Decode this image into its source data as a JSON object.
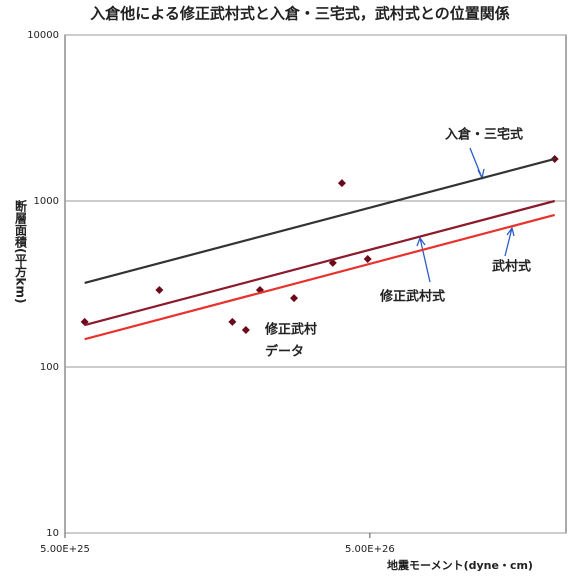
{
  "chart_data": {
    "type": "scatter",
    "title": "入倉他による修正武村式と入倉・三宅式，武村式との位置関係",
    "x_label": "地震モーメント(dyne・cm)",
    "y_label": "断層面積(平方km)",
    "log_x": true,
    "log_y": true,
    "grid": true,
    "xlim": [
      5e+25,
      2.2e+27
    ],
    "ylim": [
      10,
      10000
    ],
    "xticks": [
      {
        "value": 5e+25,
        "label": "5.00E+25"
      },
      {
        "value": 5e+26,
        "label": "5.00E+26"
      }
    ],
    "yticks": [
      10,
      100,
      1000,
      10000
    ],
    "annotations": [
      "修正武村",
      "データ"
    ],
    "series": [
      {
        "kind": "points",
        "color": "#6b0a1a",
        "x": [
          5.8e+25,
          1.02e+26,
          1.77e+26,
          1.96e+26,
          2.18e+26,
          2.82e+26,
          3.78e+26,
          4.05e+26,
          4.92e+26,
          2.02e+27
        ],
        "values": [
          187,
          291,
          187,
          167,
          291,
          260,
          424,
          1282,
          447,
          1791
        ]
      },
      {
        "kind": "line",
        "name": "入倉・三宅式",
        "color": "#333333",
        "x": [
          5.8e+25,
          2.02e+27
        ],
        "values": [
          321,
          1791
        ]
      },
      {
        "kind": "line",
        "name": "修正武村式",
        "color": "#8b1a2b",
        "x": [
          5.8e+25,
          2.02e+27
        ],
        "values": [
          179,
          1000
        ]
      },
      {
        "kind": "line",
        "name": "武村式",
        "color": "#e8322e",
        "x": [
          5.8e+25,
          2.02e+27
        ],
        "values": [
          147,
          824
        ]
      }
    ]
  }
}
